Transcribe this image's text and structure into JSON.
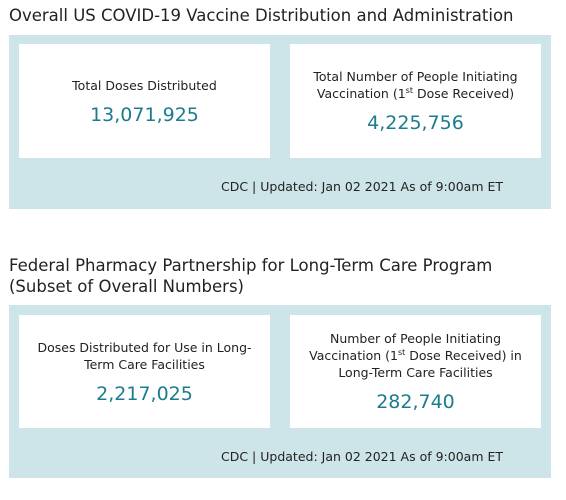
{
  "sections": [
    {
      "title": "Overall US COVID-19 Vaccine Distribution and Administration",
      "cards": [
        {
          "label": [
            "Total Doses Distributed"
          ],
          "value": "13,071,925"
        },
        {
          "label": [
            "Total Number of People Initiating Vaccination (1",
            "st",
            " Dose Received)"
          ],
          "value": "4,225,756"
        }
      ],
      "footer": "CDC | Updated: Jan 02 2021 As of 9:00am ET"
    },
    {
      "title": "Federal Pharmacy Partnership for Long-Term Care Program (Subset of Overall Numbers)",
      "cards": [
        {
          "label": [
            "Doses Distributed for Use in Long-Term Care Facilities"
          ],
          "value": "2,217,025"
        },
        {
          "label": [
            "Number of People Initiating Vaccination (1",
            "st",
            " Dose Received) in Long-Term Care Facilities"
          ],
          "value": "282,740"
        }
      ],
      "footer": "CDC | Updated: Jan 02 2021 As of 9:00am ET"
    }
  ]
}
